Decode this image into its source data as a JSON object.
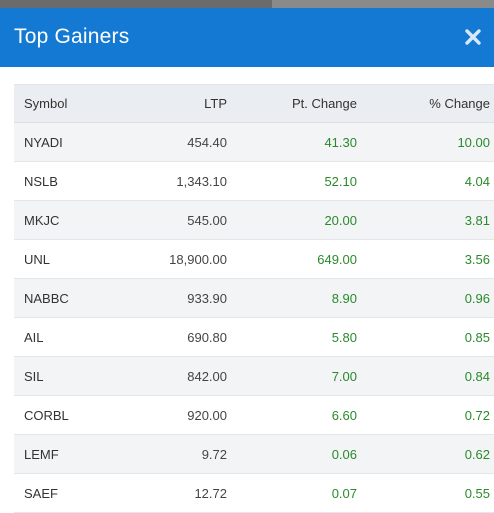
{
  "modal": {
    "title": "Top Gainers",
    "close_icon": "close-icon"
  },
  "colors": {
    "header_bg": "#1479d2",
    "positive": "#2a8a2a",
    "row_stripe": "#f2f4f6",
    "header_row_bg": "#eaedf1"
  },
  "table": {
    "headers": {
      "symbol": "Symbol",
      "ltp": "LTP",
      "pt_change": "Pt. Change",
      "pct_change": "% Change"
    },
    "rows": [
      {
        "symbol": "NYADI",
        "ltp": "454.40",
        "pt_change": "41.30",
        "pct_change": "10.00"
      },
      {
        "symbol": "NSLB",
        "ltp": "1,343.10",
        "pt_change": "52.10",
        "pct_change": "4.04"
      },
      {
        "symbol": "MKJC",
        "ltp": "545.00",
        "pt_change": "20.00",
        "pct_change": "3.81"
      },
      {
        "symbol": "UNL",
        "ltp": "18,900.00",
        "pt_change": "649.00",
        "pct_change": "3.56"
      },
      {
        "symbol": "NABBC",
        "ltp": "933.90",
        "pt_change": "8.90",
        "pct_change": "0.96"
      },
      {
        "symbol": "AIL",
        "ltp": "690.80",
        "pt_change": "5.80",
        "pct_change": "0.85"
      },
      {
        "symbol": "SIL",
        "ltp": "842.00",
        "pt_change": "7.00",
        "pct_change": "0.84"
      },
      {
        "symbol": "CORBL",
        "ltp": "920.00",
        "pt_change": "6.60",
        "pct_change": "0.72"
      },
      {
        "symbol": "LEMF",
        "ltp": "9.72",
        "pt_change": "0.06",
        "pct_change": "0.62"
      },
      {
        "symbol": "SAEF",
        "ltp": "12.72",
        "pt_change": "0.07",
        "pct_change": "0.55"
      }
    ]
  }
}
